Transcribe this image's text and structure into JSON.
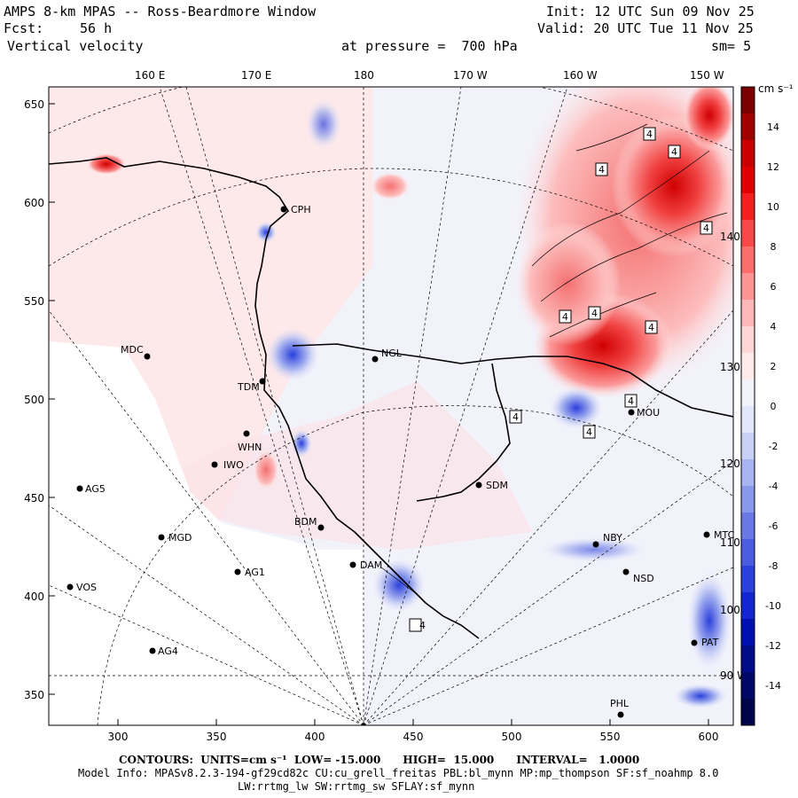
{
  "header": {
    "title": "AMPS 8-km MPAS -- Ross-Beardmore Window",
    "init": "Init: 12 UTC Sun 09 Nov 25",
    "fcst_label": "Fcst:",
    "fcst_value": "56 h",
    "valid": "Valid: 20 UTC Tue 11 Nov 25",
    "field": "Vertical velocity",
    "pressure": "at pressure =  700 hPa",
    "smoothing": "sm= 5"
  },
  "axes": {
    "top_lon_labels": [
      "160 E",
      "170 E",
      "180",
      "170 W",
      "160 W",
      "150 W"
    ],
    "right_lon_labels": [
      "140 W",
      "130 W",
      "120 W",
      "110 W",
      "100 W",
      "90 W"
    ],
    "y_ticks": [
      "650",
      "600",
      "550",
      "500",
      "450",
      "400",
      "350"
    ],
    "x_ticks": [
      "300",
      "350",
      "400",
      "450",
      "500",
      "550",
      "600"
    ]
  },
  "colorbar": {
    "units": "cm s⁻¹",
    "labels": [
      "14",
      "12",
      "10",
      "8",
      "6",
      "4",
      "2",
      "0",
      "-2",
      "-4",
      "-6",
      "-8",
      "-10",
      "-12",
      "-14"
    ],
    "colors": [
      "#7a0000",
      "#a00000",
      "#c80000",
      "#e00000",
      "#f22020",
      "#f84848",
      "#fb6e6e",
      "#fd9494",
      "#feb8b8",
      "#ffd6d6",
      "#ffeaea",
      "#f2f2fb",
      "#e2e6fa",
      "#c8d0f6",
      "#a8b4f0",
      "#8898ea",
      "#6878e4",
      "#4a5ce0",
      "#2c40dc",
      "#1424d0",
      "#0010b0",
      "#000c88",
      "#000866",
      "#00054a"
    ]
  },
  "stations": [
    {
      "name": "CPH"
    },
    {
      "name": "MDC"
    },
    {
      "name": "TDM"
    },
    {
      "name": "NGL"
    },
    {
      "name": "WHN"
    },
    {
      "name": "IWO"
    },
    {
      "name": "AG5"
    },
    {
      "name": "BDM"
    },
    {
      "name": "MGD"
    },
    {
      "name": "DAM"
    },
    {
      "name": "AG1"
    },
    {
      "name": "VOS"
    },
    {
      "name": "AG4"
    },
    {
      "name": "SDM"
    },
    {
      "name": "NBY"
    },
    {
      "name": "NSD"
    },
    {
      "name": "MOU"
    },
    {
      "name": "PHL"
    },
    {
      "name": "PAT"
    },
    {
      "name": "MTC"
    }
  ],
  "box_labels": [
    "4"
  ],
  "footer": {
    "contours": "CONTOURS:  UNITS=cm s⁻¹  LOW= -15.000      HIGH=  15.000      INTERVAL=   1.0000",
    "model_info": "Model Info: MPASv8.2.3-194-gf29cd82c CU:cu_grell_freitas PBL:bl_mynn MP:mp_thompson SF:sf_noahmp 8.0",
    "physics": "LW:rrtmg_lw SW:rrtmg_sw SFLAY:sf_mynn"
  }
}
